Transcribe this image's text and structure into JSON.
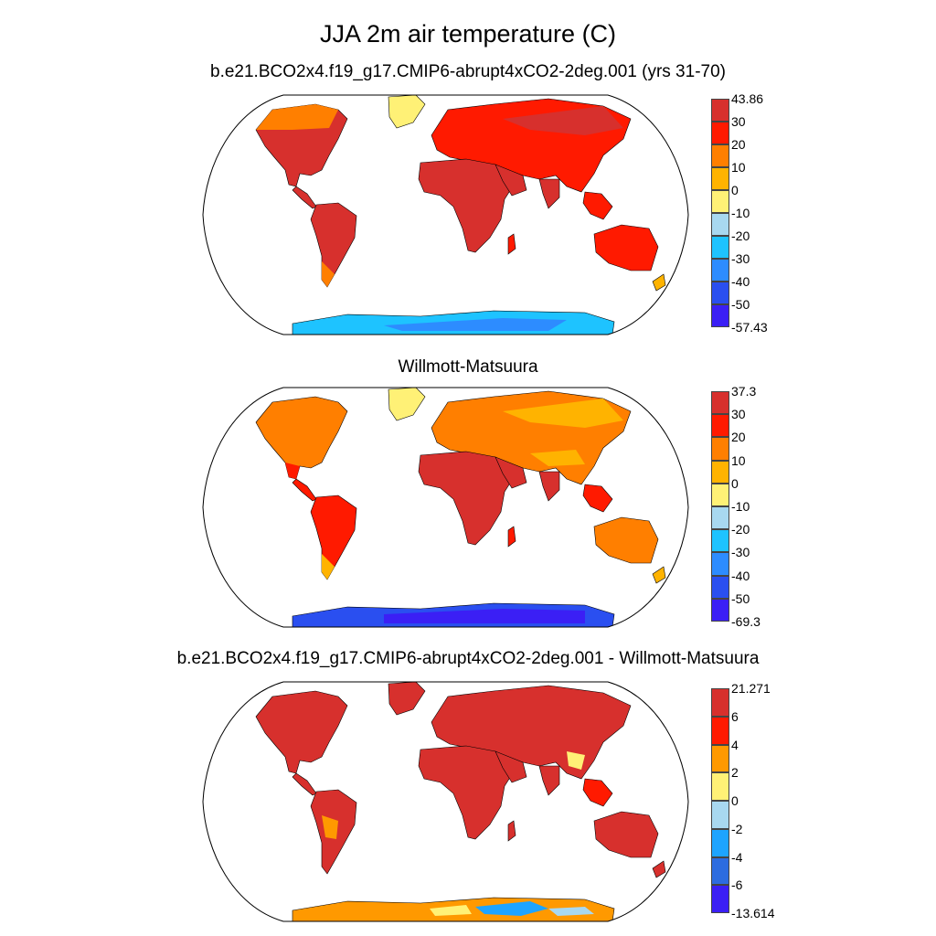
{
  "title": "JJA 2m air temperature (C)",
  "panels": [
    {
      "id": "model",
      "title": "b.e21.BCO2x4.f19_g17.CMIP6-abrupt4xCO2-2deg.001 (yrs 31-70)",
      "colorbar_labels": [
        "43.86",
        "30",
        "20",
        "10",
        "0",
        "-10",
        "-20",
        "-30",
        "-40",
        "-50",
        "-57.43"
      ],
      "colors": [
        "#d7302d",
        "#ff1a00",
        "#ff7f00",
        "#ffb300",
        "#fff176",
        "#a8d8f0",
        "#1ec3ff",
        "#2d8cff",
        "#2a4ff0",
        "#3b1ff5"
      ]
    },
    {
      "id": "obs",
      "title": "Willmott-Matsuura",
      "colorbar_labels": [
        "37.3",
        "30",
        "20",
        "10",
        "0",
        "-10",
        "-20",
        "-30",
        "-40",
        "-50",
        "-69.3"
      ],
      "colors": [
        "#d7302d",
        "#ff1a00",
        "#ff7f00",
        "#ffb300",
        "#fff176",
        "#a8d8f0",
        "#1ec3ff",
        "#2d8cff",
        "#2a4ff0",
        "#3b1ff5"
      ]
    },
    {
      "id": "diff",
      "title": "b.e21.BCO2x4.f19_g17.CMIP6-abrupt4xCO2-2deg.001 - Willmott-Matsuura",
      "colorbar_labels": [
        "21.271",
        "6",
        "4",
        "2",
        "0",
        "-2",
        "-4",
        "-6",
        "-13.614"
      ],
      "colors": [
        "#d7302d",
        "#ff1a00",
        "#ff9900",
        "#fff176",
        "#a8d8f0",
        "#1ea4ff",
        "#2d6ce0",
        "#3b1ff5"
      ]
    }
  ],
  "map": {
    "projection": "robinson",
    "field": "JJA 2m air temperature"
  }
}
